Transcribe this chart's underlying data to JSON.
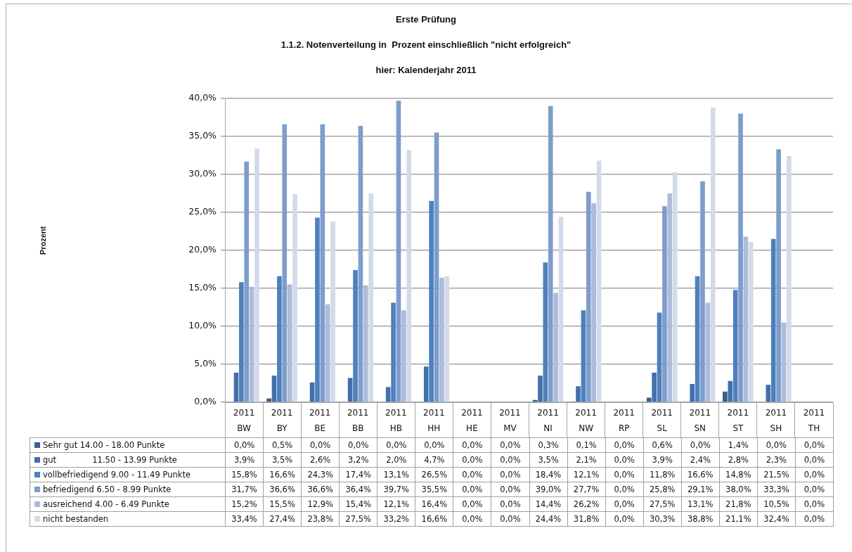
{
  "chart_data": {
    "type": "bar",
    "title": "Erste Prüfung",
    "subtitle": "1.1.2. Notenverteilung in  Prozent einschließlich \"nicht erfolgreich\"\nhier: Kalenderjahr 2011",
    "annotations": [
      "Prozent"
    ],
    "categories": [
      "2011 BW",
      "2011 BY",
      "2011 BE",
      "2011 BB",
      "2011 HB",
      "2011 HH",
      "2011 HE",
      "2011 MV",
      "2011 NI",
      "2011 NW",
      "2011 RP",
      "2011 SL",
      "2011 SN",
      "2011 ST",
      "2011 SH",
      "2011 TH"
    ],
    "series": [
      {
        "name": "Sehr gut 14.00 - 18.00 Punkte",
        "color": "#3a5f8e",
        "values": [
          0.0,
          0.5,
          0.0,
          0.0,
          0.0,
          0.0,
          0.0,
          0.0,
          0.3,
          0.1,
          0.0,
          0.6,
          0.0,
          1.4,
          0.0,
          0.0
        ],
        "value_labels": [
          "0,0%",
          "0,5%",
          "0,0%",
          "0,0%",
          "0,0%",
          "0,0%",
          "0,0%",
          "0,0%",
          "0,3%",
          "0,1%",
          "0,0%",
          "0,6%",
          "0,0%",
          "1,4%",
          "0,0%",
          "0,0%"
        ]
      },
      {
        "name": "gut              11.50 - 13.99 Punkte",
        "color": "#4270ab",
        "values": [
          3.9,
          3.5,
          2.6,
          3.2,
          2.0,
          4.7,
          0.0,
          0.0,
          3.5,
          2.1,
          0.0,
          3.9,
          2.4,
          2.8,
          2.3,
          0.0
        ],
        "value_labels": [
          "3,9%",
          "3,5%",
          "2,6%",
          "3,2%",
          "2,0%",
          "4,7%",
          "0,0%",
          "0,0%",
          "3,5%",
          "2,1%",
          "0,0%",
          "3,9%",
          "2,4%",
          "2,8%",
          "2,3%",
          "0,0%"
        ]
      },
      {
        "name": "vollbefriedigend 9.00 - 11.49 Punkte",
        "color": "#4e80bd",
        "values": [
          15.8,
          16.6,
          24.3,
          17.4,
          13.1,
          26.5,
          0.0,
          0.0,
          18.4,
          12.1,
          0.0,
          11.8,
          16.6,
          14.8,
          21.5,
          0.0
        ],
        "value_labels": [
          "15,8%",
          "16,6%",
          "24,3%",
          "17,4%",
          "13,1%",
          "26,5%",
          "0,0%",
          "0,0%",
          "18,4%",
          "12,1%",
          "0,0%",
          "11,8%",
          "16,6%",
          "14,8%",
          "21,5%",
          "0,0%"
        ]
      },
      {
        "name": "befriedigend 6.50 - 8.99 Punkte",
        "color": "#7d9dcc",
        "values": [
          31.7,
          36.6,
          36.6,
          36.4,
          39.7,
          35.5,
          0.0,
          0.0,
          39.0,
          27.7,
          0.0,
          25.8,
          29.1,
          38.0,
          33.3,
          0.0
        ],
        "value_labels": [
          "31,7%",
          "36,6%",
          "36,6%",
          "36,4%",
          "39,7%",
          "35,5%",
          "0,0%",
          "0,0%",
          "39,0%",
          "27,7%",
          "0,0%",
          "25,8%",
          "29,1%",
          "38,0%",
          "33,3%",
          "0,0%"
        ]
      },
      {
        "name": "ausreichend 4.00 - 6.49 Punkte",
        "color": "#acbcda",
        "values": [
          15.2,
          15.5,
          12.9,
          15.4,
          12.1,
          16.4,
          0.0,
          0.0,
          14.4,
          26.2,
          0.0,
          27.5,
          13.1,
          21.8,
          10.5,
          0.0
        ],
        "value_labels": [
          "15,2%",
          "15,5%",
          "12,9%",
          "15,4%",
          "12,1%",
          "16,4%",
          "0,0%",
          "0,0%",
          "14,4%",
          "26,2%",
          "0,0%",
          "27,5%",
          "13,1%",
          "21,8%",
          "10,5%",
          "0,0%"
        ]
      },
      {
        "name": "nicht bestanden",
        "color": "#d3dbea",
        "values": [
          33.4,
          27.4,
          23.8,
          27.5,
          33.2,
          16.6,
          0.0,
          0.0,
          24.4,
          31.8,
          0.0,
          30.3,
          38.8,
          21.1,
          32.4,
          0.0
        ],
        "value_labels": [
          "33,4%",
          "27,4%",
          "23,8%",
          "27,5%",
          "33,2%",
          "16,6%",
          "0,0%",
          "0,0%",
          "24,4%",
          "31,8%",
          "0,0%",
          "30,3%",
          "38,8%",
          "21,1%",
          "32,4%",
          "0,0%"
        ]
      }
    ],
    "ylim": [
      0,
      40
    ],
    "yticks": [
      {
        "value": 0,
        "label": "0,0%"
      },
      {
        "value": 5,
        "label": "5,0%"
      },
      {
        "value": 10,
        "label": "10,0%"
      },
      {
        "value": 15,
        "label": "15,0%"
      },
      {
        "value": 20,
        "label": "20,0%"
      },
      {
        "value": 25,
        "label": "25,0%"
      },
      {
        "value": 30,
        "label": "30,0%"
      },
      {
        "value": 35,
        "label": "35,0%"
      },
      {
        "value": 40,
        "label": "40,0%"
      }
    ],
    "grid": "y",
    "legend": "bottom"
  }
}
